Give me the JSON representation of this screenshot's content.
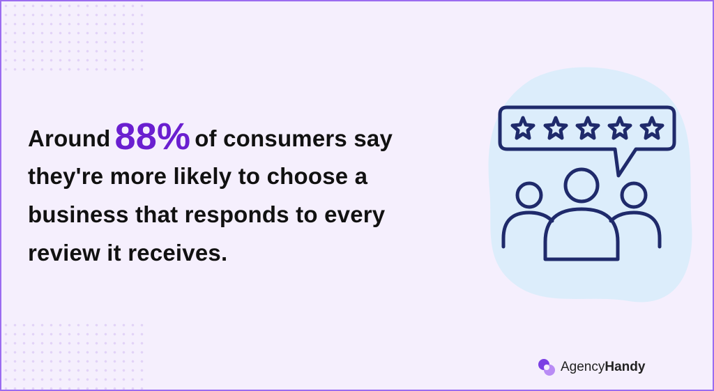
{
  "headline": {
    "lead": "Around",
    "highlight": "88%",
    "rest": "of consumers say",
    "lines": [
      "they're more likely to choose a",
      "business that responds to every",
      "review it receives."
    ]
  },
  "logo": {
    "part1": "Agency",
    "part2": "Handy"
  }
}
